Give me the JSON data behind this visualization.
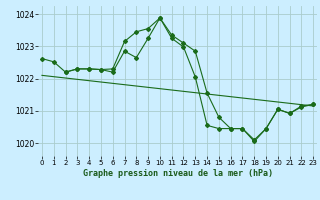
{
  "title": "Graphe pression niveau de la mer (hPa)",
  "background_color": "#cceeff",
  "grid_color": "#aacccc",
  "line_color": "#1a6b1a",
  "x_ticks": [
    0,
    1,
    2,
    3,
    4,
    5,
    6,
    7,
    8,
    9,
    10,
    11,
    12,
    13,
    14,
    15,
    16,
    17,
    18,
    19,
    20,
    21,
    22,
    23
  ],
  "y_ticks": [
    1020,
    1021,
    1022,
    1023,
    1024
  ],
  "ylim": [
    1019.6,
    1024.25
  ],
  "xlim": [
    -0.3,
    23.3
  ],
  "series": [
    {
      "x": [
        0,
        1,
        2,
        3,
        4,
        5,
        6,
        7,
        8,
        9,
        10,
        11,
        12,
        13,
        14,
        15,
        16,
        17,
        18,
        19,
        20,
        21,
        22,
        23
      ],
      "y": [
        1022.62,
        1022.52,
        1022.2,
        1022.3,
        1022.3,
        1022.28,
        1022.2,
        1022.85,
        1022.65,
        1023.25,
        1023.88,
        1023.25,
        1022.98,
        1022.05,
        1020.55,
        1020.45,
        1020.45,
        1020.45,
        1020.1,
        1020.45,
        1021.05,
        1020.92,
        1021.12,
        1021.2
      ]
    },
    {
      "x": [
        2,
        3,
        4,
        5,
        6,
        7,
        8,
        9,
        10,
        11,
        12,
        13,
        14,
        15,
        16,
        17,
        18,
        19,
        20,
        21,
        22,
        23
      ],
      "y": [
        1022.2,
        1022.3,
        1022.3,
        1022.28,
        1022.3,
        1023.15,
        1023.45,
        1023.55,
        1023.88,
        1023.35,
        1023.1,
        1022.85,
        1021.55,
        1020.8,
        1020.45,
        1020.45,
        1020.05,
        1020.45,
        1021.05,
        1020.92,
        1021.15,
        1021.2
      ]
    },
    {
      "x": [
        0,
        23
      ],
      "y": [
        1022.1,
        1021.15
      ]
    }
  ]
}
